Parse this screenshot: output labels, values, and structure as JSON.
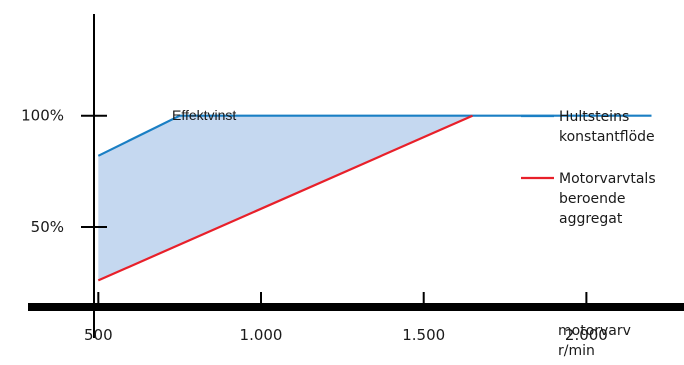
{
  "chart_data": {
    "type": "line",
    "title": "",
    "xlabel": [
      "motorvarv",
      "r/min"
    ],
    "ylabel": "",
    "xlim": [
      290,
      2300
    ],
    "ylim": [
      -12,
      152
    ],
    "x_ticks": [
      {
        "value": 500,
        "label": "500"
      },
      {
        "value": 1000,
        "label": "1.000"
      },
      {
        "value": 1500,
        "label": "1.500"
      },
      {
        "value": 2000,
        "label": "2.000"
      }
    ],
    "y_ticks": [
      {
        "value": 50,
        "label": "50%"
      },
      {
        "value": 100,
        "label": "100%"
      }
    ],
    "grid": false,
    "legend_position": "right",
    "series": [
      {
        "name": [
          "Hultsteins",
          "konstantflöde"
        ],
        "color": "#1a7fc4",
        "x": [
          500,
          750,
          2200
        ],
        "y": [
          82,
          100,
          100
        ]
      },
      {
        "name": [
          "Motorvarvtals",
          "beroende",
          "aggregat"
        ],
        "color": "#e8202a",
        "x": [
          500,
          1650
        ],
        "y": [
          26,
          100
        ]
      }
    ],
    "shaded_region": {
      "label": "Effektvinst",
      "fill": "#c5d8f0"
    },
    "axis_color": "#000000"
  }
}
